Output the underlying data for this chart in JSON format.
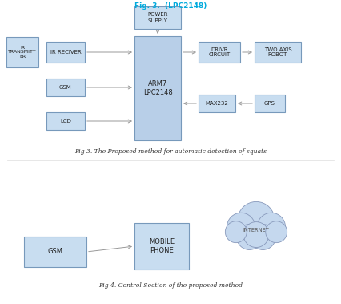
{
  "title_top": "Fig. 3. (LPC2148)",
  "title_top_color": "#00aadd",
  "title_fig3": "Fig 3. The Proposed method for automatic detection of squats",
  "title_fig4": "Fig 4. Control Section of the proposed method",
  "background_color": "#ffffff",
  "box_fill": "#c8ddf0",
  "box_edge": "#7799bb",
  "arrow_color": "#999999",
  "internet_label": "INTERNET"
}
